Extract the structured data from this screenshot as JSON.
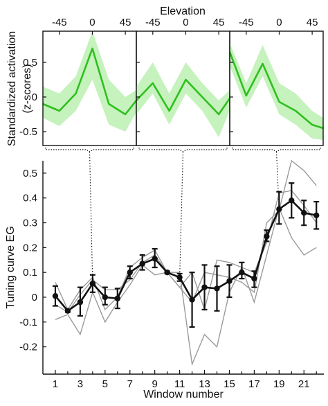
{
  "chart_data": [
    {
      "type": "line",
      "panel": "top",
      "title": "",
      "xlabel": "Elevation",
      "ylabel": "Standardized activation (z-scores)",
      "ylabel_lines": [
        "Standardized activation",
        "(z-scores)"
      ],
      "x_ticks": [
        -45,
        0,
        45
      ],
      "x_tick_labels": [
        "-45",
        "0",
        "45"
      ],
      "y_ticks": [
        0.5,
        0,
        -0.5
      ],
      "y_tick_labels": [
        "0.5",
        "0",
        "-0.5"
      ],
      "ylim": [
        -0.7,
        0.95
      ],
      "xlim": [
        -67.5,
        60
      ],
      "grid": false,
      "color": "#2fbf1f",
      "band_color": "#c6f2bd",
      "subplots": [
        {
          "x": [
            -67.5,
            -45,
            -22.5,
            0,
            22.5,
            45,
            60
          ],
          "y": [
            -0.1,
            -0.2,
            0.05,
            0.7,
            -0.1,
            -0.25,
            -0.05
          ],
          "y_lower": [
            -0.3,
            -0.42,
            -0.2,
            0.25,
            -0.4,
            -0.5,
            -0.22
          ],
          "y_upper": [
            0.15,
            0.05,
            0.3,
            0.95,
            0.25,
            0.0,
            0.1
          ]
        },
        {
          "x": [
            -67.5,
            -45,
            -22.5,
            0,
            22.5,
            45,
            60
          ],
          "y": [
            -0.05,
            0.2,
            -0.2,
            0.25,
            0.0,
            -0.25,
            -0.02
          ],
          "y_lower": [
            -0.25,
            0.05,
            -0.4,
            0.05,
            -0.2,
            -0.58,
            -0.2
          ],
          "y_upper": [
            0.15,
            0.5,
            0.05,
            0.5,
            0.2,
            -0.05,
            0.1
          ]
        },
        {
          "x": [
            -67.5,
            -45,
            -22.5,
            0,
            22.5,
            45,
            60
          ],
          "y": [
            0.65,
            0.02,
            0.48,
            -0.07,
            -0.2,
            -0.4,
            -0.45
          ],
          "y_lower": [
            0.45,
            -0.15,
            0.3,
            -0.25,
            -0.4,
            -0.6,
            -0.62
          ],
          "y_upper": [
            0.78,
            0.2,
            0.75,
            0.2,
            0.05,
            -0.2,
            -0.3
          ]
        }
      ]
    },
    {
      "type": "line",
      "panel": "bottom",
      "title": "",
      "xlabel": "Window number",
      "ylabel": "Tuning curve EG",
      "x_ticks": [
        1,
        3,
        5,
        7,
        9,
        11,
        13,
        15,
        17,
        19,
        21
      ],
      "x_tick_labels": [
        "1",
        "3",
        "5",
        "7",
        "9",
        "11",
        "13",
        "15",
        "17",
        "19",
        "21"
      ],
      "x_minor_ticks": [
        2,
        4,
        6,
        8,
        10,
        12,
        14,
        16,
        18,
        20,
        22
      ],
      "y_ticks": [
        0.5,
        0.4,
        0.3,
        0.2,
        0.1,
        0,
        -0.1,
        -0.2
      ],
      "y_tick_labels": [
        "0.5",
        "0.4",
        "0.3",
        "0.2",
        "0.1",
        "0",
        "-0.1",
        "-0.2"
      ],
      "xlim": [
        0,
        22.6
      ],
      "ylim": [
        -0.31,
        0.55
      ],
      "grid": false,
      "x": [
        1,
        2,
        3,
        4,
        5,
        6,
        7,
        8,
        9,
        10,
        11,
        12,
        13,
        14,
        15,
        16,
        17,
        18,
        19,
        20,
        21,
        22
      ],
      "series": [
        {
          "style": "mean",
          "color": "#111111",
          "values": [
            0.005,
            -0.055,
            -0.02,
            0.055,
            0.0,
            -0.005,
            0.1,
            0.135,
            0.155,
            0.1,
            0.08,
            -0.01,
            0.04,
            0.035,
            0.065,
            0.1,
            0.075,
            0.245,
            0.355,
            0.39,
            0.34,
            0.33
          ],
          "err_low": [
            -0.035,
            -0.06,
            -0.075,
            0.02,
            -0.03,
            -0.045,
            0.075,
            0.11,
            0.12,
            0.095,
            0.065,
            -0.12,
            -0.05,
            -0.055,
            0.0,
            0.075,
            0.04,
            0.225,
            0.295,
            0.32,
            0.29,
            0.275
          ],
          "err_high": [
            0.045,
            -0.05,
            0.04,
            0.09,
            0.04,
            0.035,
            0.125,
            0.17,
            0.195,
            0.105,
            0.095,
            0.1,
            0.13,
            0.125,
            0.13,
            0.14,
            0.105,
            0.27,
            0.425,
            0.46,
            0.39,
            0.385
          ]
        },
        {
          "style": "individual",
          "color": "#9a9a9a",
          "values": [
            0.06,
            -0.05,
            0.03,
            0.08,
            -0.05,
            0.0,
            0.12,
            0.16,
            0.19,
            0.1,
            0.1,
            -0.27,
            -0.15,
            -0.2,
            0.02,
            0.12,
            -0.02,
            0.17,
            0.36,
            0.24,
            0.17,
            0.2
          ]
        },
        {
          "style": "individual",
          "color": "#9a9a9a",
          "values": [
            -0.03,
            -0.06,
            0.01,
            0.07,
            0.03,
            0.03,
            0.07,
            0.14,
            0.17,
            0.1,
            0.04,
            0.1,
            -0.05,
            0.15,
            0.14,
            0.12,
            0.1,
            0.22,
            0.42,
            0.43,
            0.37,
            0.3
          ]
        },
        {
          "style": "individual",
          "color": "#9a9a9a",
          "values": [
            -0.09,
            -0.07,
            -0.15,
            0.02,
            -0.1,
            -0.02,
            0.05,
            0.13,
            0.09,
            0.1,
            0.04,
            -0.02,
            0.1,
            0.09,
            0.08,
            0.06,
            0.02,
            0.3,
            0.35,
            0.55,
            0.51,
            0.45
          ]
        }
      ]
    }
  ]
}
